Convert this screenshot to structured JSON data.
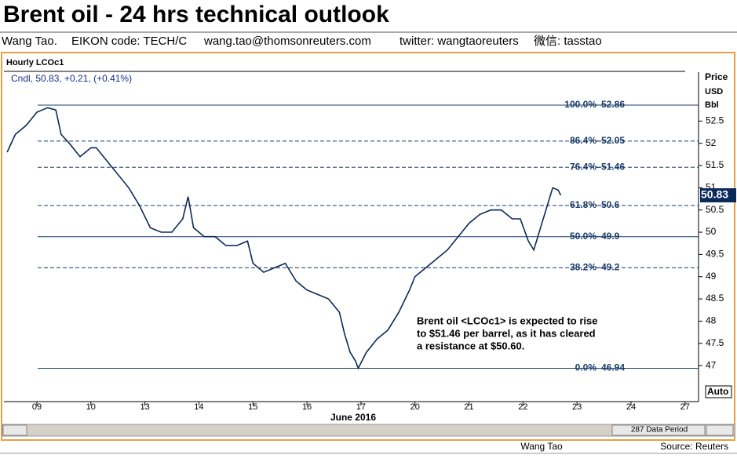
{
  "header": {
    "title": "Brent oil - 24 hrs technical outlook",
    "byline": [
      "Wang Tao.",
      "EIKON code: TECH/C",
      "wang.tao@thomsonreuters.com",
      "twitter:  wangtaoreuters",
      "微信: tasstao"
    ]
  },
  "chart_data": {
    "type": "line",
    "title": "Hourly LCOc1",
    "legend": "Cndl, 50.83, +0.21, (+0.41%)",
    "y_axis_label": [
      "Price",
      "USD",
      "Bbl"
    ],
    "x_axis_label": "June 2016",
    "current_price": 50.83,
    "current_price_label": "50.83",
    "color": "#0b2a5a",
    "series": [
      {
        "name": "LCOc1",
        "color": "#0b2a5a",
        "x": [
          -0.55,
          -0.4,
          -0.2,
          0,
          0.2,
          0.35,
          0.45,
          0.6,
          0.8,
          1.0,
          1.1,
          1.3,
          1.5,
          1.7,
          1.9,
          2.1,
          2.3,
          2.5,
          2.7,
          2.8,
          2.9,
          3.1,
          3.3,
          3.5,
          3.7,
          3.9,
          4.0,
          4.2,
          4.4,
          4.6,
          4.8,
          5.0,
          5.2,
          5.4,
          5.6,
          5.7,
          5.8,
          5.9,
          5.95,
          6.1,
          6.3,
          6.5,
          6.7,
          6.9,
          7.0,
          7.2,
          7.4,
          7.6,
          7.8,
          8.0,
          8.2,
          8.4,
          8.6,
          8.8,
          8.95,
          9.1,
          9.2,
          9.35,
          9.45,
          9.55,
          9.65,
          9.7
        ],
        "values": [
          51.8,
          52.2,
          52.4,
          52.7,
          52.8,
          52.75,
          52.2,
          52.0,
          51.7,
          51.9,
          51.9,
          51.6,
          51.3,
          51.0,
          50.6,
          50.1,
          50.0,
          50.0,
          50.3,
          50.8,
          50.1,
          49.9,
          49.9,
          49.7,
          49.7,
          49.8,
          49.3,
          49.1,
          49.2,
          49.3,
          48.9,
          48.7,
          48.6,
          48.5,
          48.2,
          47.7,
          47.3,
          47.1,
          46.94,
          47.3,
          47.6,
          47.8,
          48.2,
          48.7,
          49.0,
          49.2,
          49.4,
          49.6,
          49.9,
          50.2,
          50.4,
          50.5,
          50.5,
          50.3,
          50.3,
          49.8,
          49.6,
          50.2,
          50.6,
          51.0,
          50.95,
          50.83
        ]
      }
    ],
    "levels": [
      {
        "label": "100.0%",
        "value": 52.86,
        "style": "solid"
      },
      {
        "label": "86.4%",
        "value": 52.05,
        "style": "dashed"
      },
      {
        "label": "76.4%",
        "value": 51.46,
        "style": "dashed"
      },
      {
        "label": "61.8%",
        "value": 50.6,
        "style": "dashed"
      },
      {
        "label": "50.0%",
        "value": 49.9,
        "style": "solid"
      },
      {
        "label": "38.2%",
        "value": 49.2,
        "style": "dashed"
      },
      {
        "label": "0.0%",
        "value": 46.94,
        "style": "solid"
      }
    ],
    "annotation": [
      "Brent oil <LCOc1> is expected to rise",
      "to $51.46 per barrel, as it has cleared",
      "a resistance at $50.60."
    ],
    "xlim": [
      -0.61,
      12.25
    ],
    "xticks": [
      {
        "value": 0,
        "label": "09"
      },
      {
        "value": 1,
        "label": "10"
      },
      {
        "value": 2,
        "label": "13"
      },
      {
        "value": 3,
        "label": "14"
      },
      {
        "value": 4,
        "label": "15"
      },
      {
        "value": 5,
        "label": "16"
      },
      {
        "value": 6,
        "label": "17"
      },
      {
        "value": 7,
        "label": "20"
      },
      {
        "value": 8,
        "label": "21"
      },
      {
        "value": 9,
        "label": "22"
      },
      {
        "value": 10,
        "label": "23"
      },
      {
        "value": 11,
        "label": "24"
      },
      {
        "value": 12,
        "label": "27"
      }
    ],
    "ylim": [
      46.19,
      53.6
    ],
    "yticks": [
      47,
      47.5,
      48,
      48.5,
      49,
      49.5,
      50,
      50.5,
      51,
      51.5,
      52,
      52.5
    ]
  },
  "controls": {
    "auto": "Auto",
    "period": "287 Data Period"
  },
  "footer": {
    "author": "Wang Tao",
    "source": "Source: Reuters"
  }
}
